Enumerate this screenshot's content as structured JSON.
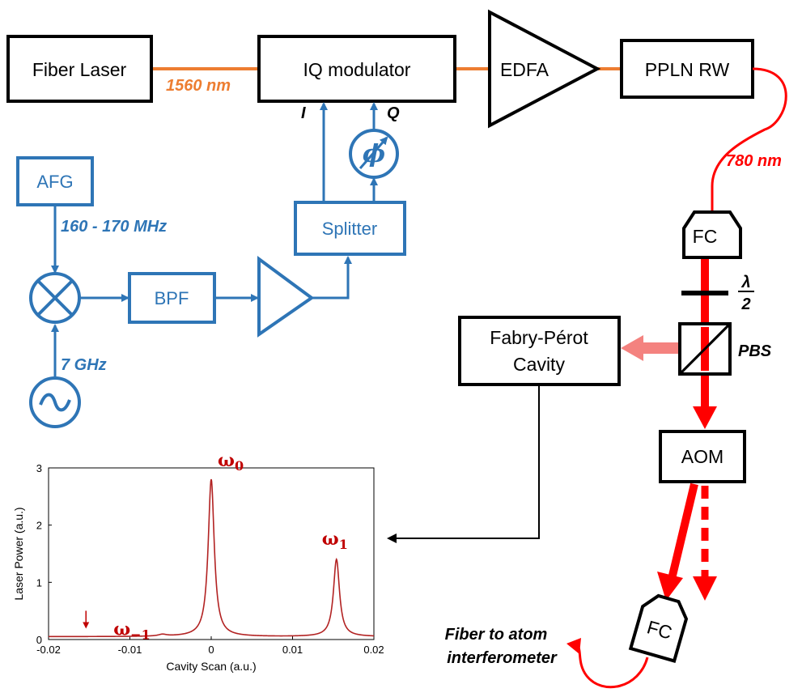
{
  "boxes": {
    "fiber_laser": "Fiber Laser",
    "iq_modulator": "IQ modulator",
    "edfa": "EDFA",
    "ppln": "PPLN RW",
    "afg": "AFG",
    "bpf": "BPF",
    "splitter": "Splitter",
    "fabry_line1": "Fabry-Pérot",
    "fabry_line2": "Cavity",
    "aom": "AOM",
    "fc_top": "FC",
    "fc_bottom": "FC"
  },
  "labels": {
    "wl_1560": "1560 nm",
    "wl_780": "780 nm",
    "i_port": "I",
    "q_port": "Q",
    "freq_afg": "160 - 170 MHz",
    "freq_7ghz": "7 GHz",
    "lambda_num": "λ",
    "lambda_den": "2",
    "pbs": "PBS",
    "fiber_out_line1": "Fiber to atom",
    "fiber_out_line2": "interferometer"
  },
  "chart_data": {
    "type": "line",
    "title": "",
    "xlabel": "Cavity Scan (a.u.)",
    "ylabel": "Laser Power (a.u.)",
    "xlim": [
      -0.02,
      0.02
    ],
    "ylim": [
      0,
      3
    ],
    "xticks": [
      "-0.02",
      "-0.01",
      "0",
      "0.01",
      "0.02"
    ],
    "yticks": [
      "0",
      "1",
      "2",
      "3"
    ],
    "line_color": "#b22222",
    "peaks": [
      {
        "x": -0.006,
        "y": 0.08,
        "width": 0.0006
      },
      {
        "x": 0.0,
        "y": 2.8,
        "width": 0.00045
      },
      {
        "x": 0.0154,
        "y": 1.4,
        "width": 0.00045
      }
    ],
    "baseline": 0.05,
    "annotations": [
      {
        "label": "ω",
        "sub": "0",
        "x": 0.0,
        "y": 2.8
      },
      {
        "label": "ω",
        "sub": "1",
        "x": 0.0154,
        "y": 1.4
      },
      {
        "label": "ω",
        "sub": "−1",
        "x": -0.0154,
        "y": 0.05
      }
    ]
  }
}
